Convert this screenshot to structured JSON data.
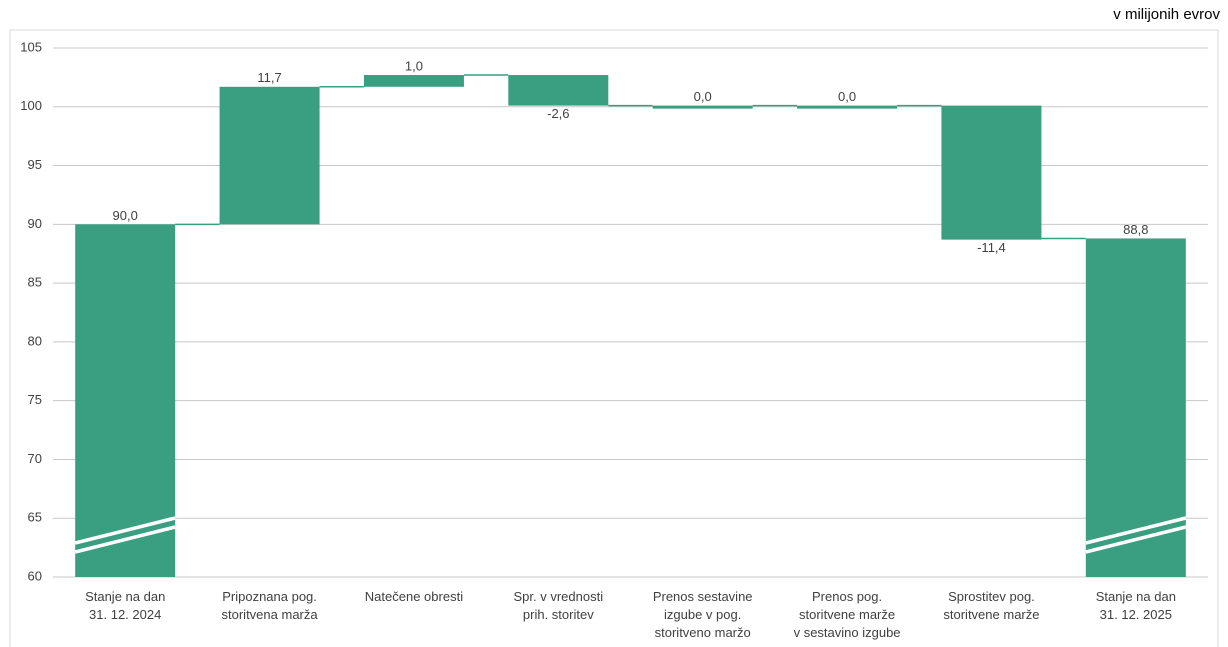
{
  "chart_data": {
    "type": "waterfall",
    "unit_label": "v milijonih evrov",
    "categories": [
      "Stanje na dan\n31. 12. 2024",
      "Pripoznana pog.\nstoritvena marža",
      "Natečene obresti",
      "Spr. v vrednosti\nprih. storitev",
      "Prenos sestavine\nizgube v pog.\nstoritveno maržo",
      "Prenos pog.\nstoritvene marže\nv sestavino izgube",
      "Sprostitev pog.\nstoritvene marže",
      "Stanje na dan\n31. 12. 2025"
    ],
    "measure": [
      "absolute",
      "relative",
      "relative",
      "relative",
      "relative",
      "relative",
      "relative",
      "absolute"
    ],
    "values": [
      90.0,
      11.7,
      1.0,
      -2.6,
      0.0,
      0.0,
      -11.4,
      88.8
    ],
    "value_labels": [
      "90,0",
      "11,7",
      "1,0",
      "-2,6",
      "0,0",
      "0,0",
      "-11,4",
      "88,8"
    ],
    "color": "#3a9e81",
    "ylim": [
      60,
      105
    ],
    "yticks": [
      60,
      65,
      70,
      75,
      80,
      85,
      90,
      95,
      100,
      105
    ],
    "grid": true
  }
}
